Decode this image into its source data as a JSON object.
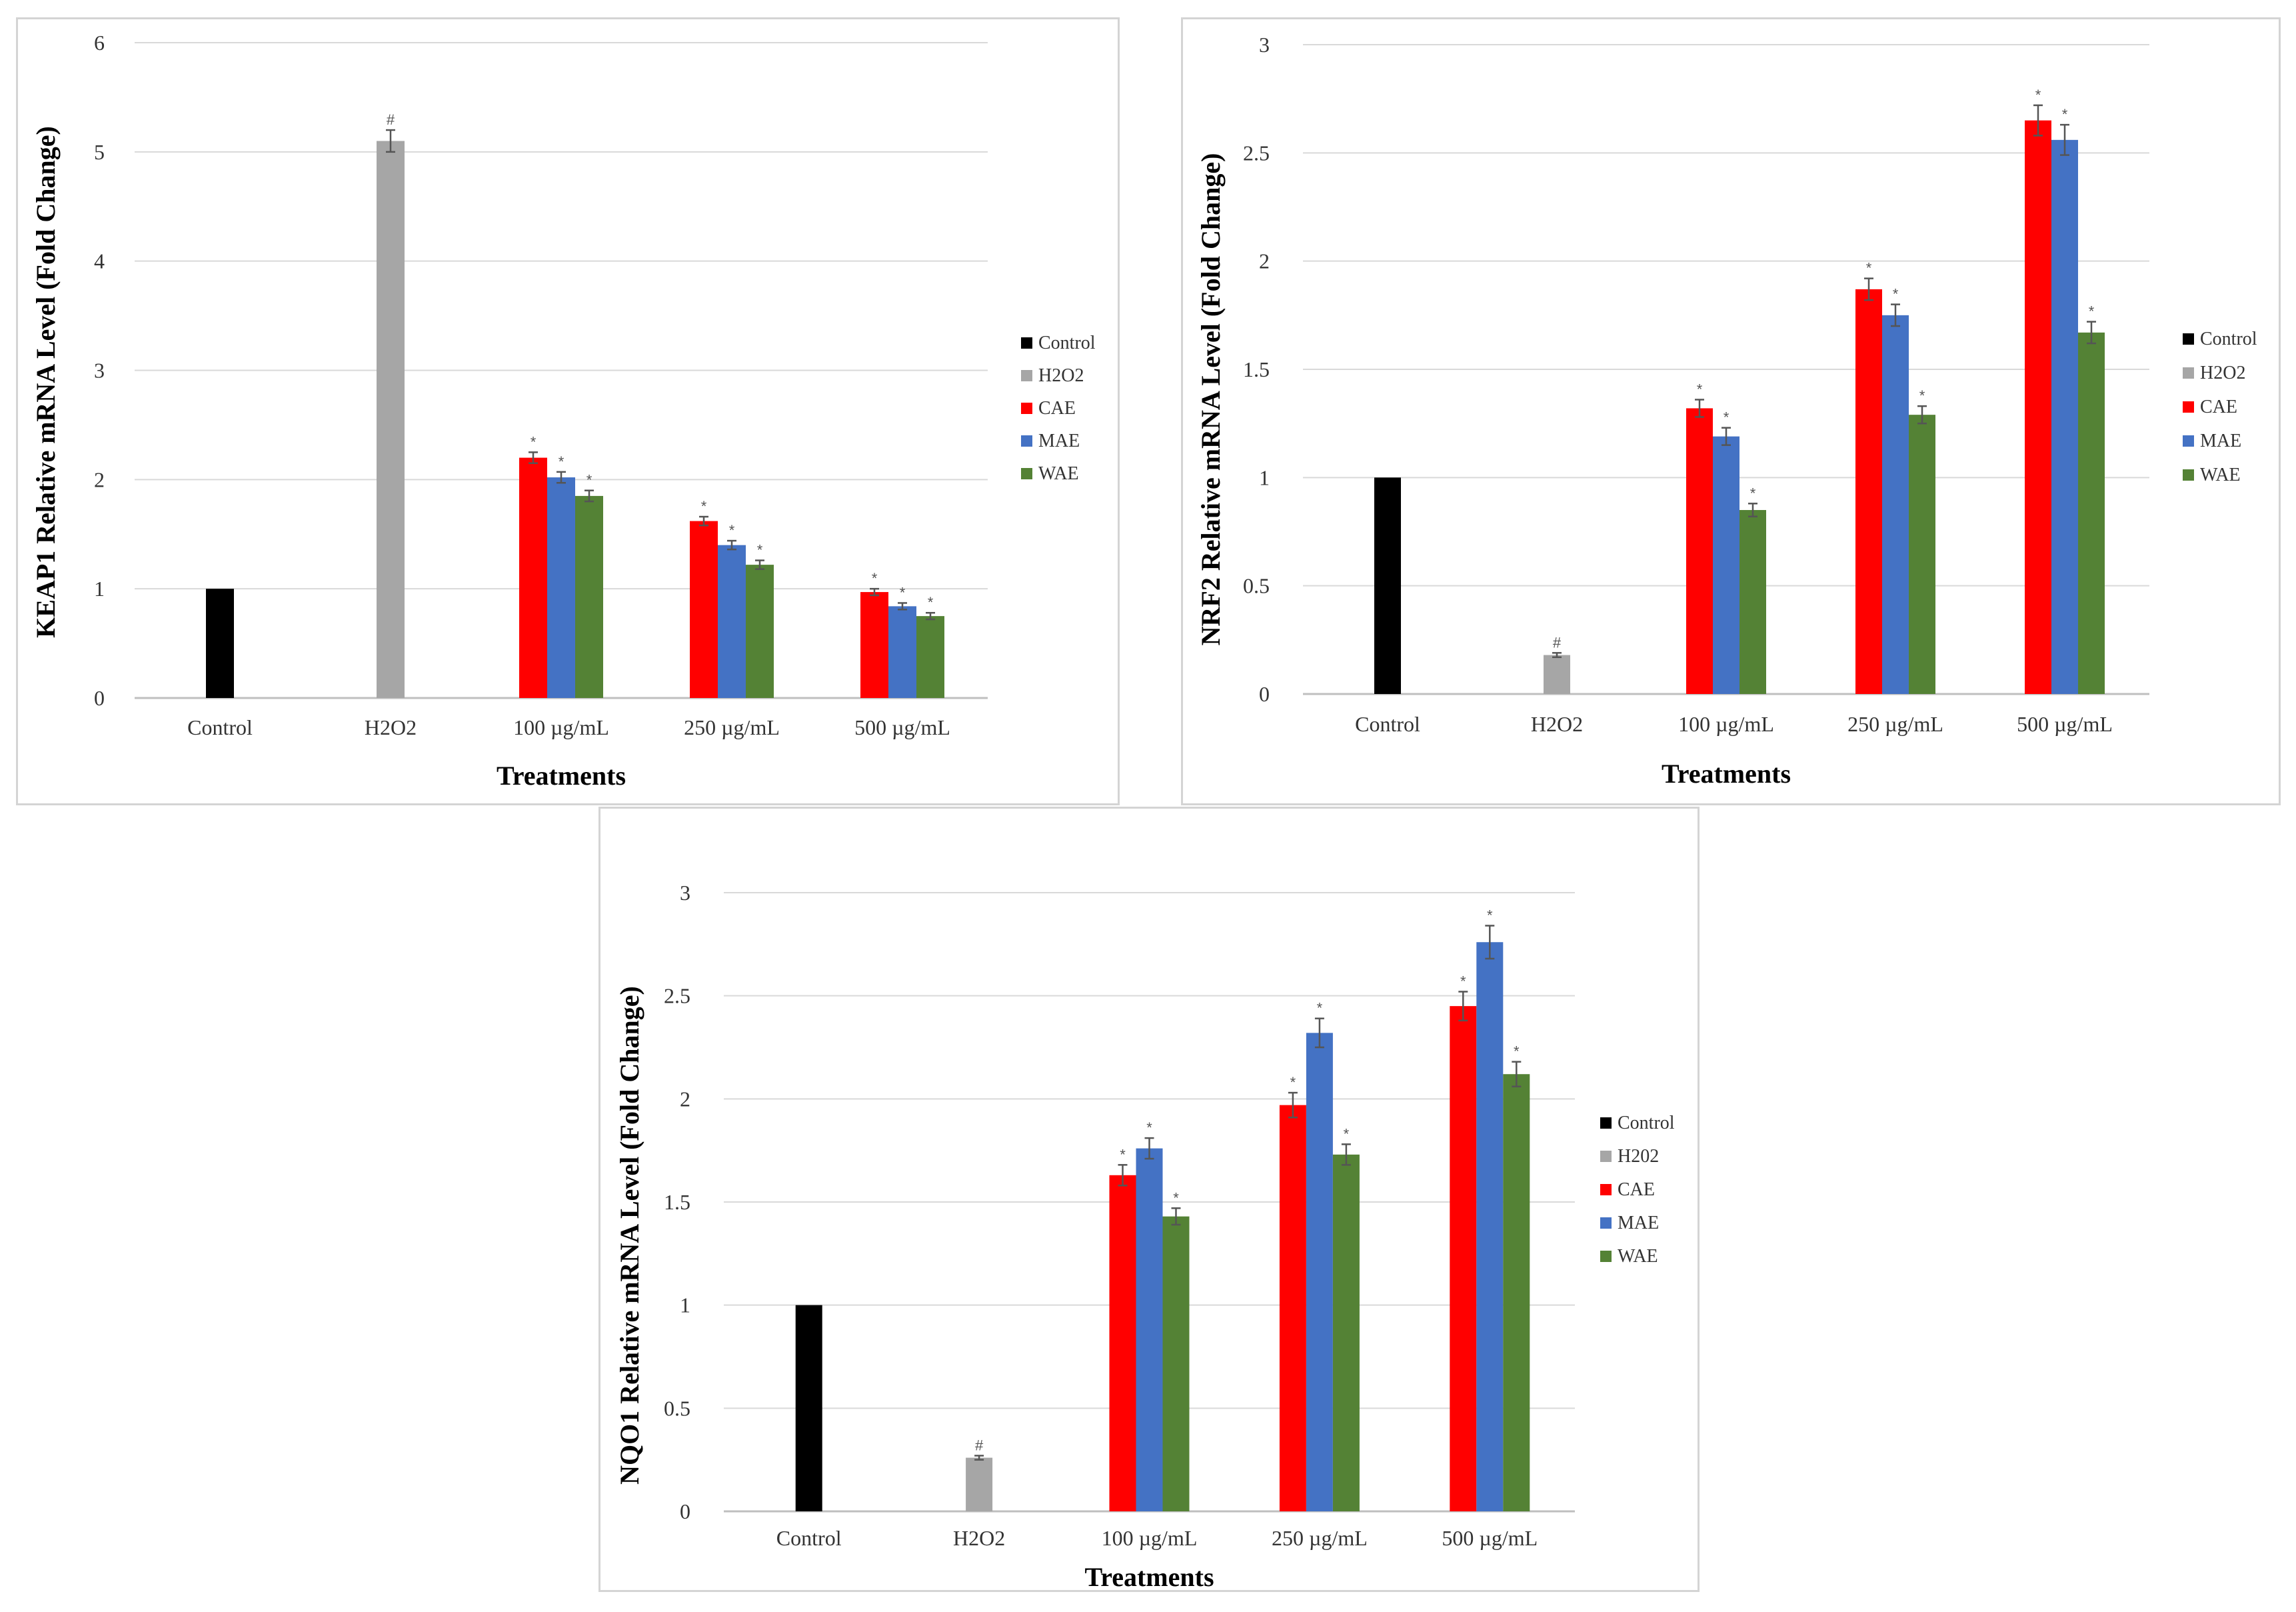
{
  "legend": {
    "entries": [
      {
        "key": "control",
        "label": "Control",
        "color": "#000000"
      },
      {
        "key": "h2o2",
        "label": "H2O2",
        "color": "#a6a6a6"
      },
      {
        "key": "cae",
        "label": "CAE",
        "color": "#ff0000"
      },
      {
        "key": "mae",
        "label": "MAE",
        "color": "#4472c4"
      },
      {
        "key": "wae",
        "label": "WAE",
        "color": "#548235"
      }
    ]
  },
  "chart_data": [
    {
      "id": "keap1",
      "type": "bar",
      "title": "",
      "xlabel": "Treatments",
      "ylabel": "KEAP1 Relative mRNA Level (Fold Change)",
      "ylim": [
        0,
        6
      ],
      "yticks": [
        "0",
        "1",
        "2",
        "3",
        "4",
        "5",
        "6"
      ],
      "categories": [
        "Control",
        "H2O2",
        "100 µg/mL",
        "250 µg/mL",
        "500 µg/mL"
      ],
      "legend_labels": [
        "Control",
        "H2O2",
        "CAE",
        "MAE",
        "WAE"
      ],
      "legend_position": "right",
      "grid": true,
      "series": [
        {
          "name": "Control",
          "values": [
            1.0,
            null,
            null,
            null,
            null
          ],
          "errors": [
            0,
            null,
            null,
            null,
            null
          ],
          "marks": [
            "",
            null,
            null,
            null,
            null
          ]
        },
        {
          "name": "H2O2",
          "values": [
            null,
            5.1,
            null,
            null,
            null
          ],
          "errors": [
            null,
            0.1,
            null,
            null,
            null
          ],
          "marks": [
            null,
            "#",
            null,
            null,
            null
          ]
        },
        {
          "name": "CAE",
          "values": [
            null,
            null,
            2.2,
            1.62,
            0.97
          ],
          "errors": [
            null,
            null,
            0.05,
            0.04,
            0.03
          ],
          "marks": [
            null,
            null,
            "*",
            "*",
            "*"
          ]
        },
        {
          "name": "MAE",
          "values": [
            null,
            null,
            2.02,
            1.4,
            0.84
          ],
          "errors": [
            null,
            null,
            0.05,
            0.04,
            0.03
          ],
          "marks": [
            null,
            null,
            "*",
            "*",
            "*"
          ]
        },
        {
          "name": "WAE",
          "values": [
            null,
            null,
            1.85,
            1.22,
            0.75
          ],
          "errors": [
            null,
            null,
            0.05,
            0.04,
            0.03
          ],
          "marks": [
            null,
            null,
            "*",
            "*",
            "*"
          ]
        }
      ]
    },
    {
      "id": "nrf2",
      "type": "bar",
      "title": "",
      "xlabel": "Treatments",
      "ylabel": "NRF2 Relative mRNA Level (Fold Change)",
      "ylim": [
        0,
        3
      ],
      "yticks": [
        "0",
        "0.5",
        "1",
        "1.5",
        "2",
        "2.5",
        "3"
      ],
      "categories": [
        "Control",
        "H2O2",
        "100 µg/mL",
        "250 µg/mL",
        "500 µg/mL"
      ],
      "legend_labels": [
        "Control",
        "H2O2",
        "CAE",
        "MAE",
        "WAE"
      ],
      "legend_position": "right",
      "grid": true,
      "series": [
        {
          "name": "Control",
          "values": [
            1.0,
            null,
            null,
            null,
            null
          ],
          "errors": [
            0,
            null,
            null,
            null,
            null
          ],
          "marks": [
            "",
            null,
            null,
            null,
            null
          ]
        },
        {
          "name": "H2O2",
          "values": [
            null,
            0.18,
            null,
            null,
            null
          ],
          "errors": [
            null,
            0.01,
            null,
            null,
            null
          ],
          "marks": [
            null,
            "#",
            null,
            null,
            null
          ]
        },
        {
          "name": "CAE",
          "values": [
            null,
            null,
            1.32,
            1.87,
            2.65
          ],
          "errors": [
            null,
            null,
            0.04,
            0.05,
            0.07
          ],
          "marks": [
            null,
            null,
            "*",
            "*",
            "*"
          ]
        },
        {
          "name": "MAE",
          "values": [
            null,
            null,
            1.19,
            1.75,
            2.56
          ],
          "errors": [
            null,
            null,
            0.04,
            0.05,
            0.07
          ],
          "marks": [
            null,
            null,
            "*",
            "*",
            "*"
          ]
        },
        {
          "name": "WAE",
          "values": [
            null,
            null,
            0.85,
            1.29,
            1.67
          ],
          "errors": [
            null,
            null,
            0.03,
            0.04,
            0.05
          ],
          "marks": [
            null,
            null,
            "*",
            "*",
            "*"
          ]
        }
      ]
    },
    {
      "id": "nqo1",
      "type": "bar",
      "title": "",
      "xlabel": "Treatments",
      "ylabel": "NQO1 Relative mRNA Level (Fold Change)",
      "ylim": [
        0,
        3
      ],
      "yticks": [
        "0",
        "0.5",
        "1",
        "1.5",
        "2",
        "2.5",
        "3"
      ],
      "categories": [
        "Control",
        "H2O2",
        "100 µg/mL",
        "250 µg/mL",
        "500 µg/mL"
      ],
      "legend_labels": [
        "Control",
        "H202",
        "CAE",
        "MAE",
        "WAE"
      ],
      "legend_position": "right",
      "grid": true,
      "series": [
        {
          "name": "Control",
          "values": [
            1.0,
            null,
            null,
            null,
            null
          ],
          "errors": [
            0,
            null,
            null,
            null,
            null
          ],
          "marks": [
            "",
            null,
            null,
            null,
            null
          ]
        },
        {
          "name": "H2O2",
          "values": [
            null,
            0.26,
            null,
            null,
            null
          ],
          "errors": [
            null,
            0.01,
            null,
            null,
            null
          ],
          "marks": [
            null,
            "#",
            null,
            null,
            null
          ]
        },
        {
          "name": "CAE",
          "values": [
            null,
            null,
            1.63,
            1.97,
            2.45
          ],
          "errors": [
            null,
            null,
            0.05,
            0.06,
            0.07
          ],
          "marks": [
            null,
            null,
            "*",
            "*",
            "*"
          ]
        },
        {
          "name": "MAE",
          "values": [
            null,
            null,
            1.76,
            2.32,
            2.76
          ],
          "errors": [
            null,
            null,
            0.05,
            0.07,
            0.08
          ],
          "marks": [
            null,
            null,
            "*",
            "*",
            "*"
          ]
        },
        {
          "name": "WAE",
          "values": [
            null,
            null,
            1.43,
            1.73,
            2.12
          ],
          "errors": [
            null,
            null,
            0.04,
            0.05,
            0.06
          ],
          "marks": [
            null,
            null,
            "*",
            "*",
            "*"
          ]
        }
      ]
    }
  ]
}
